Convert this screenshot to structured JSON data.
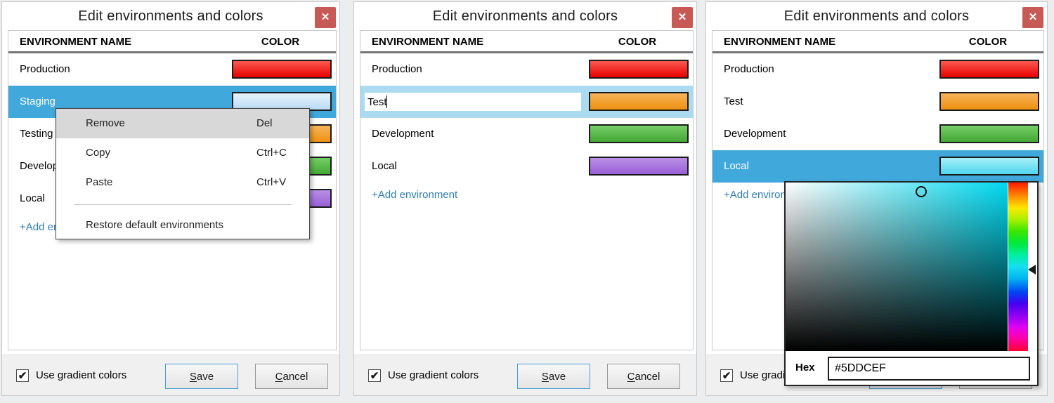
{
  "dialog": {
    "title": "Edit environments and colors",
    "close_glyph": "✕",
    "header": {
      "name_col": "ENVIRONMENT NAME",
      "color_col": "COLOR"
    },
    "add_link": "+Add environment",
    "footer": {
      "checkbox_label": "Use gradient colors",
      "check_glyph": "✔",
      "save_mnemonic": "S",
      "save_rest": "ave",
      "cancel_mnemonic": "C",
      "cancel_rest": "ancel"
    }
  },
  "colors": {
    "selected_row": "#41a8dc",
    "editing_row": "#abdaf1",
    "add_link": "#2e7eb3",
    "close_button": "#c85a55",
    "save_border": "#43a0d8"
  },
  "windows": [
    {
      "rows": [
        {
          "name": "Production",
          "swatch": {
            "top": "#fb5a50",
            "bottom": "#e80000"
          }
        },
        {
          "name": "Staging",
          "swatch": {
            "top": "#e7f3fd",
            "bottom": "#b9dbf4"
          }
        },
        {
          "name": "Testing",
          "swatch": {
            "top": "#f6b45a",
            "bottom": "#ee9110"
          }
        },
        {
          "name": "Development",
          "swatch": {
            "top": "#75ce67",
            "bottom": "#45a836"
          }
        },
        {
          "name": "Local",
          "swatch": {
            "top": "#b990e7",
            "bottom": "#9a5fd7"
          }
        }
      ]
    },
    {
      "rows": [
        {
          "name": "Production",
          "swatch": {
            "top": "#fb5a50",
            "bottom": "#e80000"
          }
        },
        {
          "name": "Test",
          "swatch": {
            "top": "#f6b45a",
            "bottom": "#ee9110"
          }
        },
        {
          "name": "Development",
          "swatch": {
            "top": "#75ce67",
            "bottom": "#45a836"
          }
        },
        {
          "name": "Local",
          "swatch": {
            "top": "#b990e7",
            "bottom": "#9a5fd7"
          }
        }
      ]
    },
    {
      "rows": [
        {
          "name": "Production",
          "swatch": {
            "top": "#fb5a50",
            "bottom": "#e80000"
          }
        },
        {
          "name": "Test",
          "swatch": {
            "top": "#f6b45a",
            "bottom": "#ee9110"
          }
        },
        {
          "name": "Development",
          "swatch": {
            "top": "#75ce67",
            "bottom": "#45a836"
          }
        },
        {
          "name": "Local",
          "swatch": {
            "top": "#a7f0fa",
            "bottom": "#4fd6ee"
          }
        }
      ]
    }
  ],
  "context_menu": {
    "items": [
      {
        "label": "Remove",
        "shortcut": "Del"
      },
      {
        "label": "Copy",
        "shortcut": "Ctrl+C"
      },
      {
        "label": "Paste",
        "shortcut": "Ctrl+V"
      }
    ],
    "restore_label": "Restore default environments"
  },
  "color_picker": {
    "hex_label": "Hex",
    "hex_value": "#5DDCEF",
    "selected_hue": "#00d9f0"
  }
}
